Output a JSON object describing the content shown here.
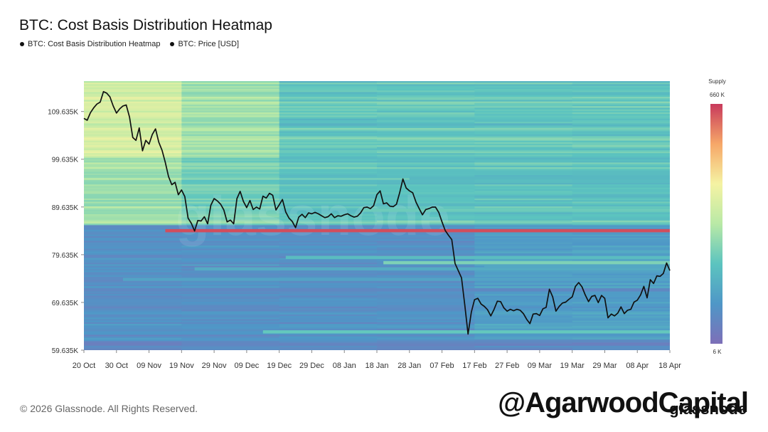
{
  "title": "BTC: Cost Basis Distribution Heatmap",
  "legend": [
    {
      "label": "BTC: Cost Basis Distribution Heatmap"
    },
    {
      "label": "BTC: Price [USD]"
    }
  ],
  "colorbar": {
    "title": "Supply",
    "max_label": "660 K",
    "min_label": "6 K",
    "stops": [
      "#7d6fb8",
      "#4f97c7",
      "#5cc4bf",
      "#b9e9a6",
      "#f5f3a3",
      "#f6a768",
      "#c83a5c"
    ]
  },
  "footer": {
    "copyright": "© 2026 Glassnode. All Rights Reserved.",
    "watermark": "@AgarwoodCapital",
    "brand": "glassnode",
    "bg_watermark": "glassnode"
  },
  "chart_data": {
    "type": "heatmap",
    "title": "BTC: Cost Basis Distribution Heatmap",
    "x_tick_labels": [
      "20 Oct",
      "30 Oct",
      "09 Nov",
      "19 Nov",
      "29 Nov",
      "09 Dec",
      "19 Dec",
      "29 Dec",
      "08 Jan",
      "18 Jan",
      "28 Jan",
      "07 Feb",
      "17 Feb",
      "27 Feb",
      "09 Mar",
      "19 Mar",
      "29 Mar",
      "08 Apr",
      "18 Apr"
    ],
    "x_range_days": [
      0,
      180
    ],
    "y_ticks": [
      59635,
      69635,
      79635,
      89635,
      99635,
      109635
    ],
    "y_tick_labels": [
      "59.635K",
      "69.635K",
      "79.635K",
      "89.635K",
      "99.635K",
      "109.635K"
    ],
    "ylim": [
      59635,
      116000
    ],
    "bands": [
      {
        "price": 84700,
        "start_day": 25,
        "supply": 640
      },
      {
        "price": 79100,
        "start_day": 62,
        "supply": 200
      },
      {
        "price": 78000,
        "start_day": 92,
        "supply": 260
      },
      {
        "price": 76700,
        "start_day": 34,
        "supply": 160
      },
      {
        "price": 77200,
        "start_day": 123,
        "supply": 150
      },
      {
        "price": 74500,
        "start_day": 12,
        "supply": 140
      },
      {
        "price": 72300,
        "start_day": 0,
        "supply": 70
      },
      {
        "price": 65100,
        "start_day": 136,
        "supply": 140
      },
      {
        "price": 63300,
        "start_day": 0,
        "supply": 110
      },
      {
        "price": 63500,
        "start_day": 55,
        "supply": 230
      },
      {
        "price": 95700,
        "start_day": 100,
        "supply": 190
      },
      {
        "price": 89000,
        "start_day": 85,
        "supply": 240
      }
    ],
    "price_series": {
      "name": "BTC: Price [USD]",
      "days": [
        0,
        1,
        2,
        3,
        4,
        5,
        6,
        7,
        8,
        9,
        10,
        11,
        12,
        13,
        14,
        15,
        16,
        17,
        18,
        19,
        20,
        21,
        22,
        23,
        24,
        25,
        26,
        27,
        28,
        29,
        30,
        31,
        32,
        33,
        34,
        35,
        36,
        37,
        38,
        39,
        40,
        41,
        42,
        43,
        44,
        45,
        46,
        47,
        48,
        49,
        50,
        51,
        52,
        53,
        54,
        55,
        56,
        57,
        58,
        59,
        60,
        61,
        62,
        63,
        64,
        65,
        66,
        67,
        68,
        69,
        70,
        71,
        72,
        73,
        74,
        75,
        76,
        77,
        78,
        79,
        80,
        81,
        82,
        83,
        84,
        85,
        86,
        87,
        88,
        89,
        90,
        91,
        92,
        93,
        94,
        95,
        96,
        97,
        98,
        99,
        100,
        101,
        102,
        103,
        104,
        105,
        106,
        107,
        108,
        109,
        110,
        111,
        112,
        113,
        114,
        115,
        116,
        117,
        118,
        119,
        120,
        121,
        122,
        123,
        124,
        125,
        126,
        127,
        128,
        129,
        130,
        131,
        132,
        133,
        134,
        135,
        136,
        137,
        138,
        139,
        140,
        141,
        142,
        143,
        144,
        145,
        146,
        147,
        148,
        149,
        150,
        151,
        152,
        153,
        154,
        155,
        156,
        157,
        158,
        159,
        160,
        161,
        162,
        163,
        164,
        165,
        166,
        167,
        168,
        169,
        170,
        171,
        172,
        173,
        174,
        175,
        176,
        177,
        178,
        179,
        180
      ],
      "values": [
        108200,
        107800,
        109400,
        110400,
        111200,
        111600,
        113800,
        113500,
        112700,
        110800,
        109300,
        110200,
        110800,
        111000,
        108500,
        104200,
        103600,
        106200,
        101400,
        103600,
        102800,
        104800,
        106000,
        103200,
        101500,
        99000,
        96000,
        94300,
        94800,
        92200,
        93200,
        91800,
        87300,
        86200,
        84600,
        86800,
        86700,
        87600,
        86100,
        90000,
        91400,
        90900,
        90200,
        89000,
        86500,
        86900,
        86100,
        91400,
        92900,
        90800,
        89500,
        91000,
        89100,
        89600,
        89200,
        91900,
        91500,
        92500,
        92100,
        89000,
        90100,
        91200,
        88600,
        87300,
        86600,
        85300,
        87500,
        88100,
        87400,
        88400,
        88200,
        88500,
        88200,
        87800,
        87400,
        87600,
        88200,
        87400,
        87800,
        87700,
        88000,
        88200,
        87800,
        87500,
        87700,
        88400,
        89500,
        89600,
        89300,
        89900,
        92200,
        93000,
        90300,
        90500,
        89800,
        89700,
        90200,
        92600,
        95500,
        93600,
        93000,
        92600,
        90700,
        89300,
        88000,
        89100,
        89300,
        89600,
        89600,
        88500,
        86500,
        84700,
        83700,
        82800,
        77800,
        76300,
        74800,
        69100,
        63000,
        67600,
        70200,
        70500,
        69300,
        68800,
        68100,
        66800,
        68200,
        69900,
        69800,
        68500,
        67800,
        68200,
        67900,
        68200,
        68000,
        67300,
        66100,
        65200,
        67200,
        67300,
        66900,
        68300,
        68600,
        72400,
        70800,
        67800,
        68800,
        69500,
        69700,
        70300,
        70800,
        73000,
        73800,
        72900,
        71200,
        69800,
        70900,
        71100,
        69600,
        71100,
        70500,
        66400,
        67200,
        66800,
        67400,
        68700,
        67300,
        68000,
        68200,
        69700,
        70100,
        71200,
        73000,
        70600,
        74400,
        73600,
        75200,
        75100,
        75700,
        77900,
        76300
      ]
    }
  }
}
